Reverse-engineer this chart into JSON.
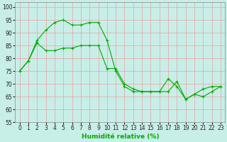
{
  "title": "",
  "xlabel": "Humidité relative (%)",
  "ylabel": "",
  "background_color": "#c8eee8",
  "grid_color": "#e8aaaa",
  "line_color": "#00aa00",
  "xlim": [
    -0.5,
    23.5
  ],
  "ylim": [
    55,
    102
  ],
  "yticks": [
    55,
    60,
    65,
    70,
    75,
    80,
    85,
    90,
    95,
    100
  ],
  "xticks": [
    0,
    1,
    2,
    3,
    4,
    5,
    6,
    7,
    8,
    9,
    10,
    11,
    12,
    13,
    14,
    15,
    16,
    17,
    18,
    19,
    20,
    21,
    22,
    23
  ],
  "series1_x": [
    0,
    1,
    2,
    3,
    4,
    5,
    6,
    7,
    8,
    9,
    10,
    11,
    12,
    13,
    14,
    15,
    16,
    17,
    18,
    19,
    20,
    21,
    22,
    23
  ],
  "series1_y": [
    75,
    79,
    87,
    91,
    94,
    95,
    93,
    93,
    94,
    94,
    87,
    75,
    69,
    67,
    67,
    67,
    67,
    72,
    69,
    64,
    66,
    68,
    69,
    69
  ],
  "series2_x": [
    0,
    1,
    2,
    3,
    4,
    5,
    6,
    7,
    8,
    9,
    10,
    11,
    12,
    13,
    14,
    15,
    16,
    17,
    18,
    19,
    20,
    21,
    22,
    23
  ],
  "series2_y": [
    75,
    79,
    86,
    83,
    83,
    84,
    84,
    85,
    85,
    85,
    76,
    76,
    70,
    68,
    67,
    67,
    67,
    67,
    71,
    64,
    66,
    65,
    67,
    69
  ],
  "xlabel_fontsize": 6.5,
  "tick_fontsize": 5.5
}
